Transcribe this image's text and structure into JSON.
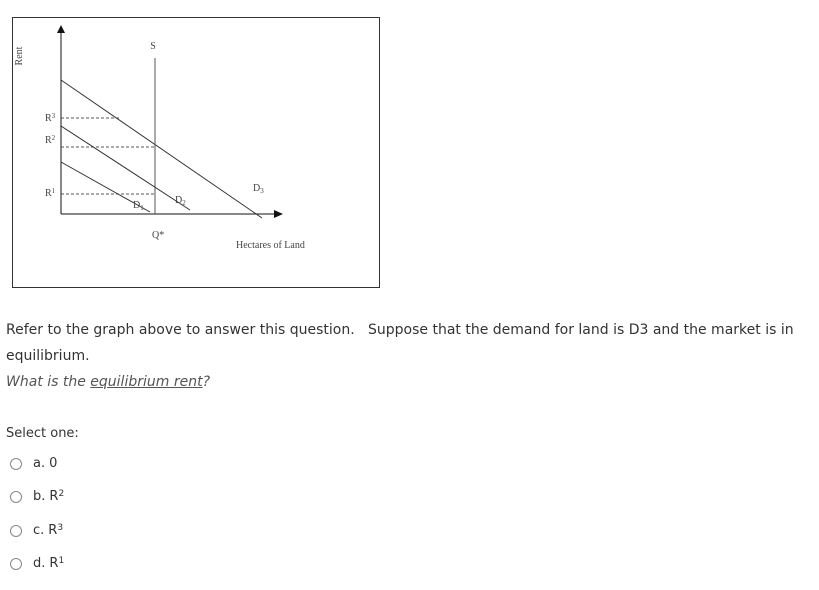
{
  "diagram": {
    "y_axis_label": "Rent",
    "supply_label": "S",
    "rent_levels": [
      {
        "base": "R",
        "sup": "3"
      },
      {
        "base": "R",
        "sup": "2"
      },
      {
        "base": "R",
        "sup": "1"
      }
    ],
    "demand_labels": [
      {
        "base": "D",
        "sub": "3"
      },
      {
        "base": "D",
        "sub": "2"
      },
      {
        "base": "D",
        "sub": "1"
      }
    ],
    "quantity_label": "Q*",
    "x_axis_label": "Hectares of Land"
  },
  "question": {
    "text": "Refer to the graph above to answer this question.   Suppose that the demand for land is D3 and the market is in equilibrium.",
    "ask_prefix": "What is the ",
    "ask_link": "equilibrium rent",
    "ask_suffix": "?"
  },
  "prompt": "Select one:",
  "options": [
    {
      "letter": "a.",
      "text": "0"
    },
    {
      "letter": "b.",
      "text": "R",
      "sup": "2"
    },
    {
      "letter": "c.",
      "text": "R",
      "sup": "3"
    },
    {
      "letter": "d.",
      "text": "R",
      "sup": "1"
    }
  ]
}
